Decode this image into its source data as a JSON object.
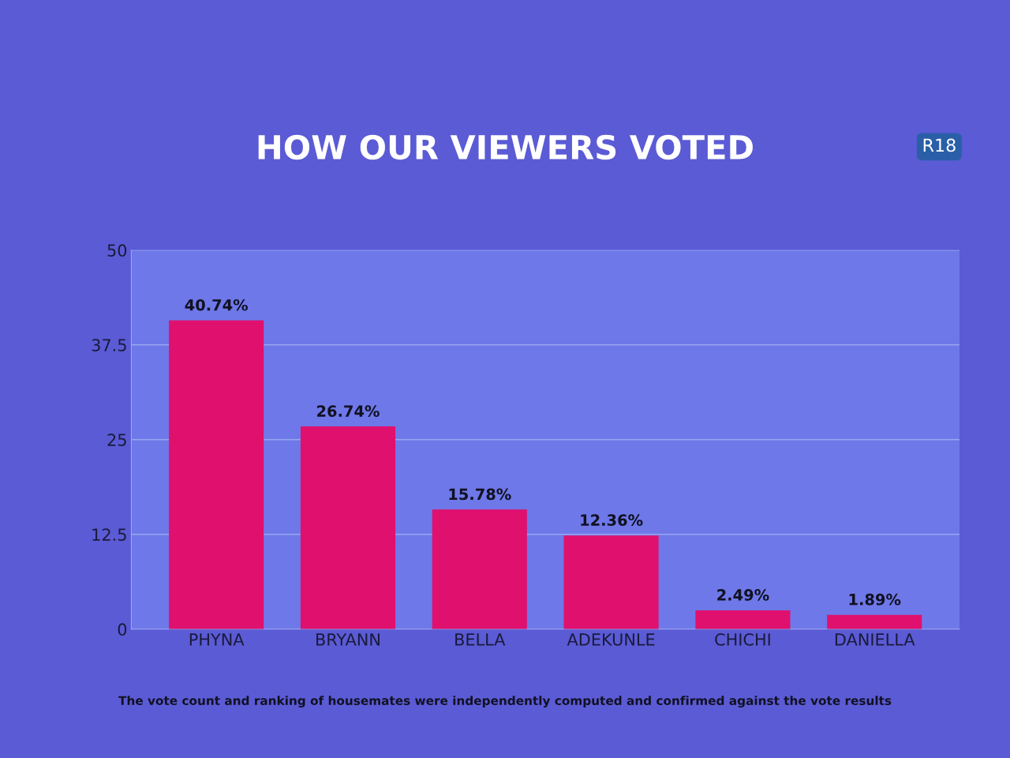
{
  "chart_data": {
    "type": "bar",
    "title": "HOW OUR VIEWERS VOTED",
    "categories": [
      "PHYNA",
      "BRYANN",
      "BELLA",
      "ADEKUNLE",
      "CHICHI",
      "DANIELLA"
    ],
    "values": [
      40.74,
      26.74,
      15.78,
      12.36,
      2.49,
      1.89
    ],
    "value_labels": [
      "40.74%",
      "26.74%",
      "15.78%",
      "12.36%",
      "2.49%",
      "1.89%"
    ],
    "color": "#e0106e",
    "ylim": [
      0,
      50
    ],
    "yticks": [
      0,
      12.5,
      25,
      37.5,
      50
    ],
    "grid": "y",
    "annotations": [
      "R18",
      "The vote count and ranking of housemates were independently computed and confirmed against the vote results"
    ]
  }
}
